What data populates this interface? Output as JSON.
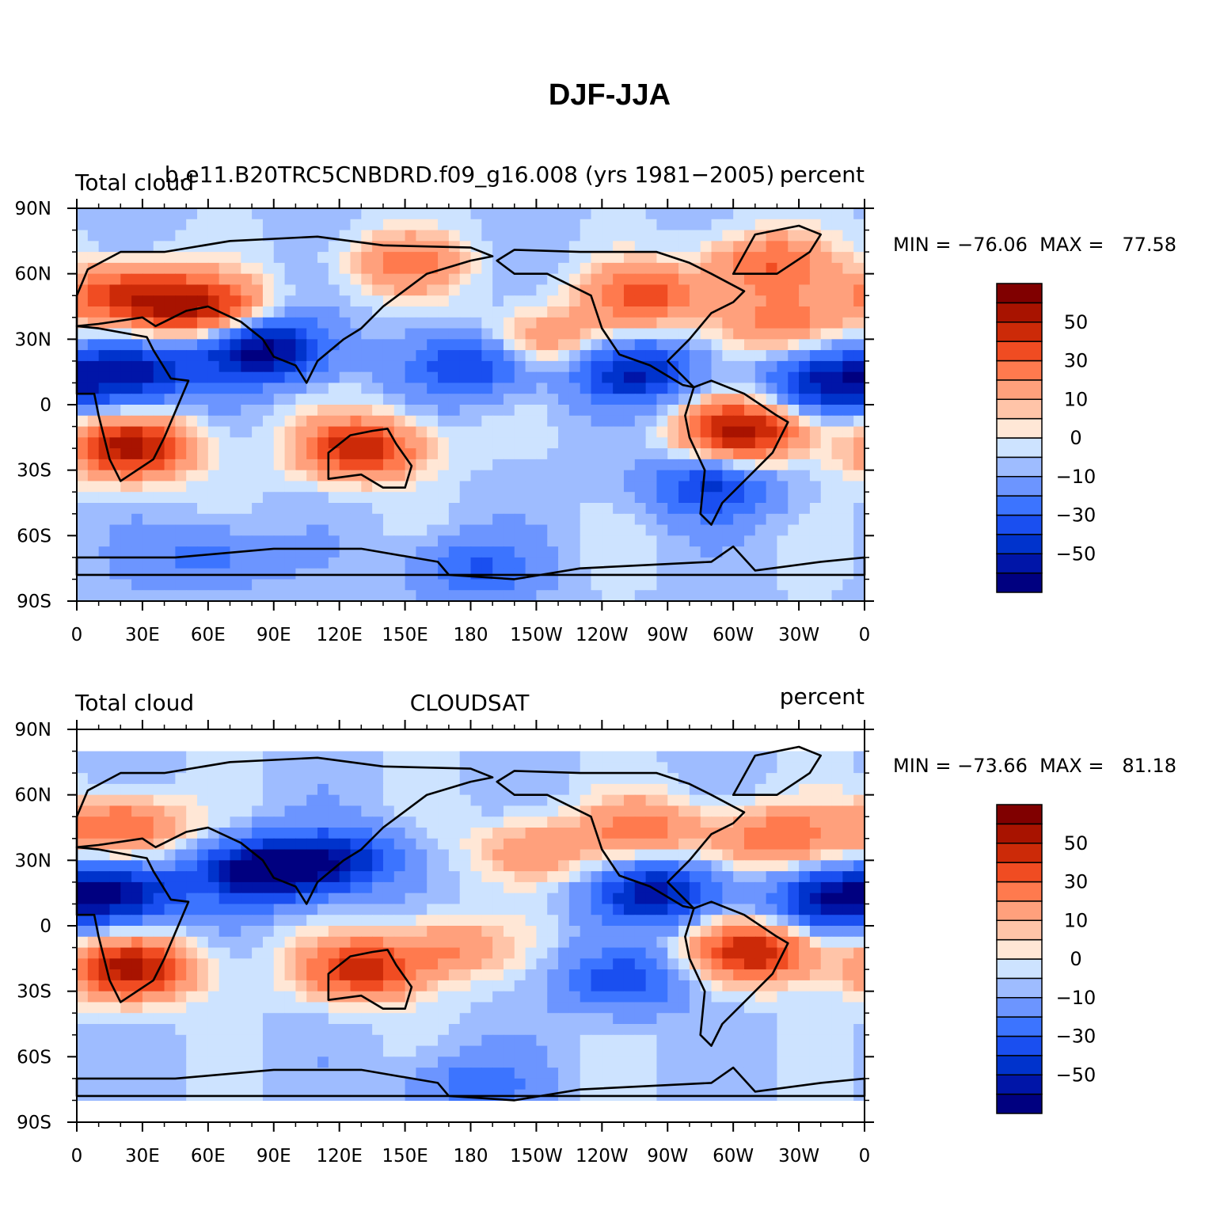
{
  "figure": {
    "title": "DJF-JJA"
  },
  "x_ticks": [
    "0",
    "30E",
    "60E",
    "90E",
    "120E",
    "150E",
    "180",
    "150W",
    "120W",
    "90W",
    "60W",
    "30W",
    "0"
  ],
  "y_ticks": [
    "90N",
    "60N",
    "30N",
    "0",
    "30S",
    "60S",
    "90S"
  ],
  "colorbar": {
    "colors": [
      "#000080",
      "#0015a8",
      "#0033cc",
      "#1a4ff0",
      "#3c74ff",
      "#6c95ff",
      "#9ebcff",
      "#cde3ff",
      "#ffe7d6",
      "#ffc4a8",
      "#ffa07c",
      "#ff7a4e",
      "#f04c22",
      "#cc2a08",
      "#a81300",
      "#800000"
    ],
    "labels": [
      "50",
      "30",
      "10",
      "0",
      "−10",
      "−30",
      "−50"
    ]
  },
  "panels": [
    {
      "left_label": "Total cloud",
      "center_label": "b.e11.B20TRC5CNBDRD.f09_g16.008 (yrs 1981−2005)",
      "right_label": "percent",
      "stats": "MIN = −76.06  MAX =   77.58",
      "fields": [
        {
          "lon": 20,
          "lat": 50,
          "value": 45
        },
        {
          "lon": 55,
          "lat": 45,
          "value": 55
        },
        {
          "lon": 25,
          "lat": -20,
          "value": 60
        },
        {
          "lon": 130,
          "lat": -20,
          "value": 55
        },
        {
          "lon": 305,
          "lat": -12,
          "value": 60
        },
        {
          "lon": 260,
          "lat": 50,
          "value": 40
        },
        {
          "lon": 315,
          "lat": 65,
          "value": 35
        },
        {
          "lon": 320,
          "lat": 38,
          "value": 30
        },
        {
          "lon": 215,
          "lat": 30,
          "value": 25
        },
        {
          "lon": 150,
          "lat": 65,
          "value": 30
        },
        {
          "lon": 85,
          "lat": 25,
          "value": -60
        },
        {
          "lon": 25,
          "lat": 15,
          "value": -50
        },
        {
          "lon": 180,
          "lat": 18,
          "value": -35
        },
        {
          "lon": 255,
          "lat": 15,
          "value": -45
        },
        {
          "lon": 345,
          "lat": 10,
          "value": -45
        },
        {
          "lon": 290,
          "lat": -38,
          "value": -35
        },
        {
          "lon": 180,
          "lat": -75,
          "value": -25
        },
        {
          "lon": 60,
          "lat": -70,
          "value": -20
        }
      ]
    },
    {
      "left_label": "Total cloud",
      "center_label": "CLOUDSAT",
      "right_label": "percent",
      "stats": "MIN = −73.66  MAX =   81.18",
      "fields": [
        {
          "lon": 25,
          "lat": -20,
          "value": 60
        },
        {
          "lon": 130,
          "lat": -20,
          "value": 50
        },
        {
          "lon": 310,
          "lat": -12,
          "value": 55
        },
        {
          "lon": 20,
          "lat": 45,
          "value": 40
        },
        {
          "lon": 260,
          "lat": 45,
          "value": 30
        },
        {
          "lon": 320,
          "lat": 40,
          "value": 35
        },
        {
          "lon": 210,
          "lat": 35,
          "value": 25
        },
        {
          "lon": 170,
          "lat": -10,
          "value": 25
        },
        {
          "lon": 85,
          "lat": 25,
          "value": -65
        },
        {
          "lon": 20,
          "lat": 15,
          "value": -50
        },
        {
          "lon": 265,
          "lat": 15,
          "value": -50
        },
        {
          "lon": 345,
          "lat": 12,
          "value": -45
        },
        {
          "lon": 250,
          "lat": -25,
          "value": -30
        },
        {
          "lon": 120,
          "lat": 30,
          "value": -40
        },
        {
          "lon": 180,
          "lat": -73,
          "value": -20
        }
      ]
    }
  ]
}
